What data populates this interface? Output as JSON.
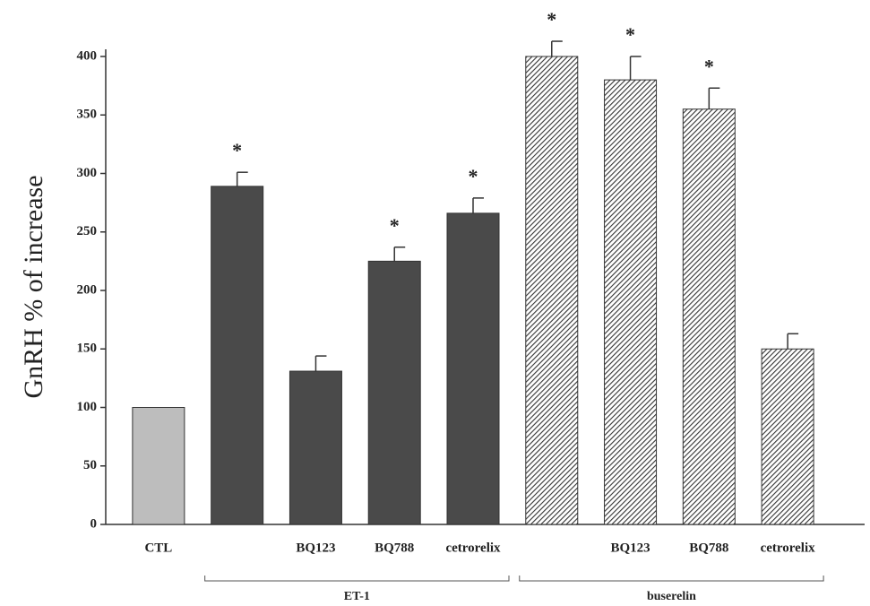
{
  "chart_data": {
    "type": "bar",
    "y_label": "GnRH % of increase",
    "categories": [
      "CTL",
      null,
      "BQ123",
      "BQ788",
      "cetrorelix",
      null,
      "BQ123",
      "BQ788",
      "cetrorelix"
    ],
    "values": [
      100,
      289,
      131,
      225,
      266,
      400,
      380,
      355,
      150
    ],
    "errors": [
      null,
      12,
      13,
      12,
      13,
      13,
      20,
      18,
      13
    ],
    "stars": [
      null,
      "*",
      null,
      "*",
      "*",
      "*",
      "*",
      "*",
      null
    ],
    "colors": [
      "#bdbdbd",
      "#4a4a4a",
      "#4a4a4a",
      "#4a4a4a",
      "#4a4a4a",
      "#555555",
      "#555555",
      "#555555",
      "#555555"
    ],
    "hatched": [
      false,
      false,
      false,
      false,
      false,
      true,
      true,
      true,
      true
    ],
    "groups": [
      {
        "label": "ET-1",
        "from": 1,
        "to": 4
      },
      {
        "label": "buserelin",
        "from": 5,
        "to": 8
      }
    ],
    "ylim": [
      0,
      400
    ],
    "yticks": [
      0,
      50,
      100,
      150,
      200,
      250,
      300,
      350,
      400
    ],
    "grid": false
  }
}
